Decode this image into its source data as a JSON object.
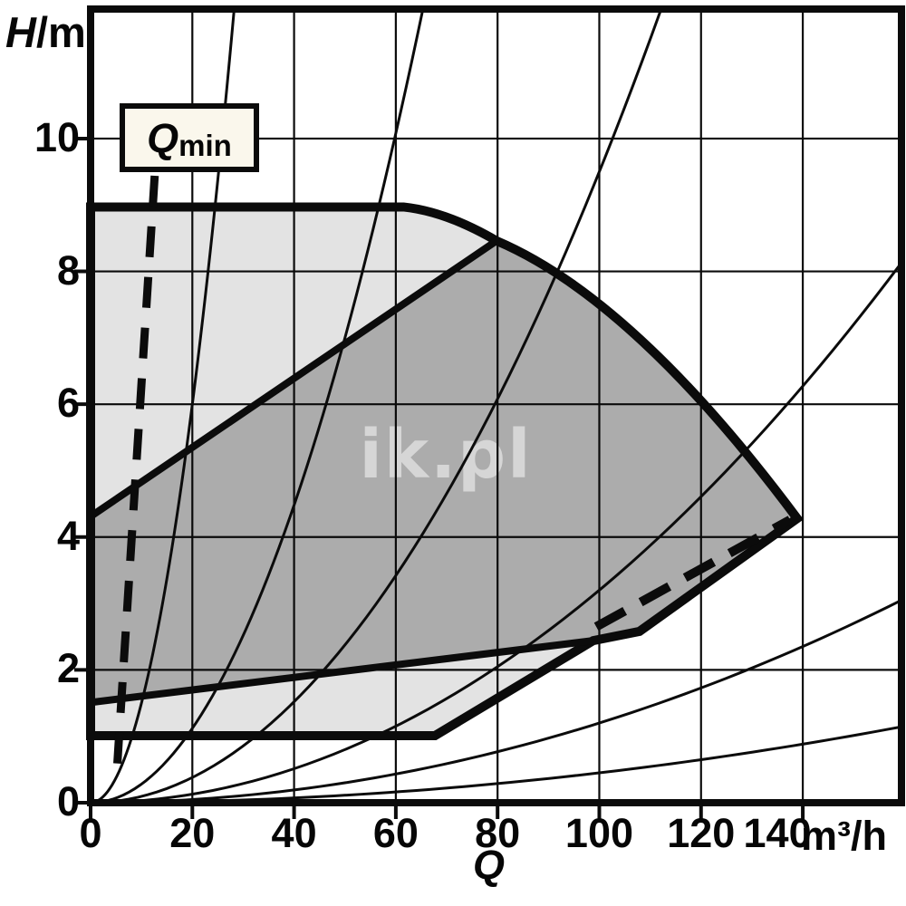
{
  "watermark": "ik.pl",
  "axes": {
    "y": {
      "label_main": "H",
      "label_unit": "/m",
      "ticks": [
        0,
        2,
        4,
        6,
        8,
        10
      ]
    },
    "x": {
      "label": "Q",
      "unit": "m³/h",
      "ticks": [
        0,
        20,
        40,
        60,
        80,
        100,
        120,
        140
      ]
    }
  },
  "annotation": {
    "qmin_main": "Q",
    "qmin_sub": "min"
  },
  "colors": {
    "outer_region_fill": "#e3e3e3",
    "inner_region_fill": "#acacac",
    "line_color": "#0b0b0b",
    "annotation_box_fill": "#faf7ec",
    "watermark_color": "#ffffff"
  },
  "chart_data": {
    "type": "area",
    "title": "",
    "xlabel": "Q (m³/h)",
    "ylabel": "H/m",
    "xlim": [
      0,
      159.4
    ],
    "ylim": [
      0,
      11.95
    ],
    "x_ticks": [
      0,
      20,
      40,
      60,
      80,
      100,
      120,
      140
    ],
    "y_ticks": [
      0,
      2,
      4,
      6,
      8,
      10
    ],
    "x_tick_label_offsets": [
      0,
      0,
      0,
      0,
      0,
      0,
      0,
      -28
    ],
    "grid": true,
    "legend": "none",
    "regions": [
      {
        "name": "outer-envelope",
        "fill": "#e3e3e3",
        "path": [
          [
            "M",
            0,
            8.97
          ],
          [
            "L",
            61.5,
            8.97
          ],
          [
            "Q",
            70,
            8.9,
            79.8,
            8.46
          ],
          [
            "Q",
            106.8,
            7.58,
            138.9,
            4.28
          ],
          [
            "L",
            107.9,
            2.58
          ],
          [
            "L",
            98.8,
            2.44
          ],
          [
            "L",
            67.7,
            1.01
          ],
          [
            "L",
            0,
            1.01
          ],
          [
            "Z"
          ]
        ]
      },
      {
        "name": "inner-envelope",
        "fill": "#acacac",
        "path": [
          [
            "M",
            0,
            4.31
          ],
          [
            "L",
            79.8,
            8.46
          ],
          [
            "Q",
            106.8,
            7.58,
            138.9,
            4.28
          ],
          [
            "L",
            107.9,
            2.58
          ],
          [
            "L",
            98.8,
            2.44
          ],
          [
            "L",
            0,
            1.51
          ],
          [
            "Z"
          ]
        ]
      }
    ],
    "system_curves": {
      "model": "H = k * Q^2",
      "k_values": [
        0.015,
        0.0028,
        0.00095,
        0.00032,
        0.00012,
        4.5e-05
      ]
    },
    "qmin_line": {
      "style": "dashed",
      "points": [
        [
          12.6,
          9.44
        ],
        [
          5.2,
          0.52
        ]
      ]
    },
    "aux_dashed_segment": {
      "style": "dashed",
      "points": [
        [
          99.4,
          2.65
        ],
        [
          137.5,
          4.26
        ]
      ]
    }
  }
}
